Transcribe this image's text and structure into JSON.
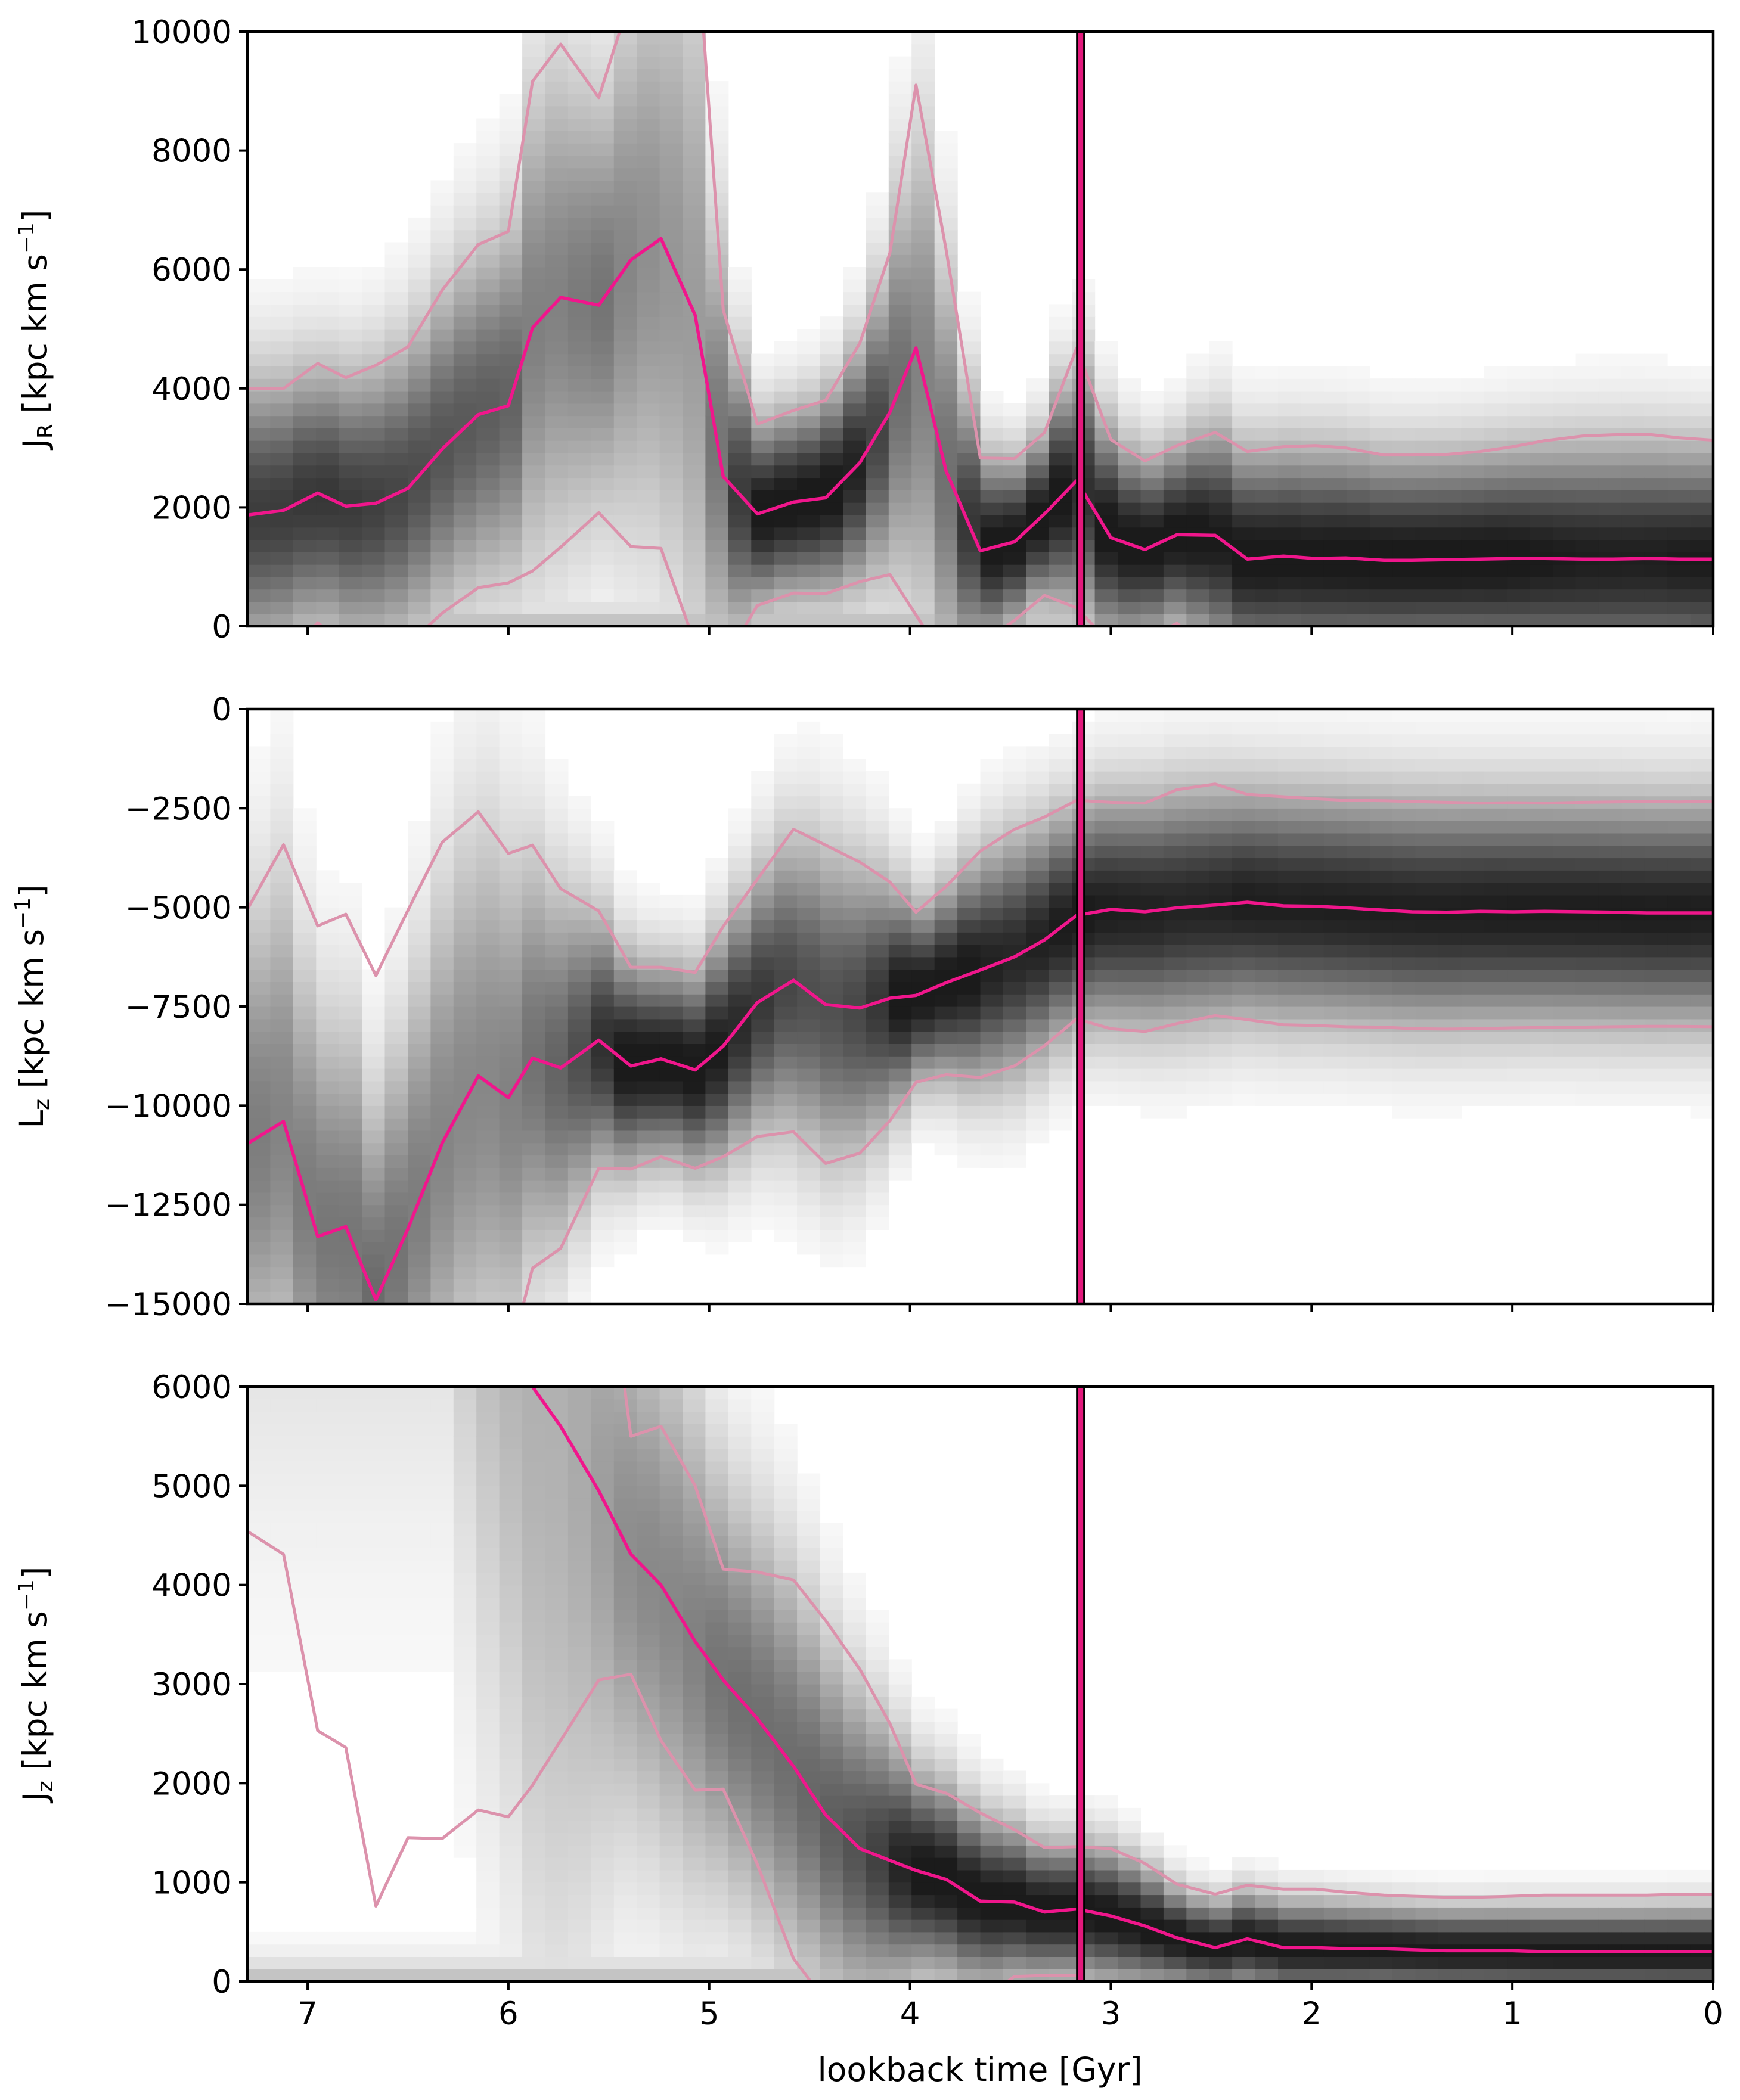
{
  "colors": {
    "median": "#f0168c",
    "percentile": "#dc92ac",
    "marker_fill": "#e3197c",
    "marker_edge": "#000000",
    "heat_dark": "#0b0b0b"
  },
  "chart_data": [
    {
      "type": "heatmap",
      "panel": "top",
      "ylabel_main": "J",
      "ylabel_sub": "R",
      "ylabel_rest": " [kpc km s",
      "ylabel_sup": "−1",
      "ylabel_end": "]",
      "xlim": [
        7.3,
        0
      ],
      "ylim": [
        0,
        10000
      ],
      "yticks": [
        0,
        2000,
        4000,
        6000,
        8000,
        10000
      ],
      "ytick_labels": [
        "0",
        "2000",
        "4000",
        "6000",
        "8000",
        "10000"
      ],
      "marker_x": 3.15,
      "x": [
        7.3,
        7.12,
        6.95,
        6.81,
        6.66,
        6.5,
        6.33,
        6.15,
        6.0,
        5.88,
        5.74,
        5.55,
        5.39,
        5.24,
        5.07,
        4.93,
        4.76,
        4.58,
        4.42,
        4.25,
        4.1,
        3.97,
        3.82,
        3.65,
        3.48,
        3.33,
        3.17,
        3.0,
        2.83,
        2.67,
        2.48,
        2.32,
        2.14,
        1.98,
        1.83,
        1.64,
        1.5,
        1.33,
        1.16,
        1.0,
        0.84,
        0.65,
        0.5,
        0.33,
        0.17,
        0.0
      ],
      "median": [
        1870,
        1950,
        2240,
        2020,
        2070,
        2320,
        2980,
        3560,
        3710,
        5020,
        5530,
        5400,
        6160,
        6520,
        5230,
        2520,
        1890,
        2090,
        2160,
        2750,
        3600,
        4680,
        2610,
        1270,
        1420,
        1890,
        2450,
        1490,
        1290,
        1540,
        1530,
        1130,
        1180,
        1140,
        1150,
        1110,
        1110,
        1120,
        1130,
        1140,
        1140,
        1130,
        1130,
        1140,
        1130,
        1130
      ],
      "p_high": [
        4000,
        4000,
        4420,
        4180,
        4390,
        4700,
        5650,
        6420,
        6640,
        9160,
        9790,
        8890,
        10600,
        12000,
        12000,
        5320,
        3400,
        3630,
        3800,
        4760,
        6280,
        9100,
        6330,
        2830,
        2820,
        3260,
        4680,
        3140,
        2780,
        3040,
        3260,
        2940,
        3020,
        3040,
        3000,
        2880,
        2880,
        2890,
        2940,
        3020,
        3120,
        3200,
        3220,
        3230,
        3170,
        3130
      ],
      "p_low": [
        -600,
        -550,
        60,
        -320,
        -300,
        -300,
        220,
        650,
        730,
        930,
        1330,
        1910,
        1340,
        1310,
        -300,
        -600,
        350,
        560,
        550,
        750,
        870,
        190,
        -600,
        -300,
        100,
        520,
        310,
        -300,
        -200,
        50,
        -500,
        -600,
        -600,
        -600,
        -600,
        -600,
        -600,
        -600,
        -600,
        -600,
        -600,
        -600,
        -600,
        -600,
        -600,
        -600
      ]
    },
    {
      "type": "heatmap",
      "panel": "middle",
      "ylabel_main": "L",
      "ylabel_sub": "z",
      "ylabel_rest": " [kpc km s",
      "ylabel_sup": "−1",
      "ylabel_end": "]",
      "xlim": [
        7.3,
        0
      ],
      "ylim": [
        -15000,
        0
      ],
      "yticks": [
        -15000,
        -12500,
        -10000,
        -7500,
        -5000,
        -2500,
        0
      ],
      "ytick_labels": [
        "−15000",
        "−12500",
        "−10000",
        "−7500",
        "−5000",
        "−2500",
        "0"
      ],
      "marker_x": 3.15,
      "x": [
        7.3,
        7.12,
        6.95,
        6.81,
        6.66,
        6.5,
        6.33,
        6.15,
        6.0,
        5.88,
        5.74,
        5.55,
        5.39,
        5.24,
        5.07,
        4.93,
        4.76,
        4.58,
        4.42,
        4.25,
        4.1,
        3.97,
        3.82,
        3.65,
        3.48,
        3.33,
        3.17,
        3.0,
        2.83,
        2.67,
        2.48,
        2.32,
        2.14,
        1.98,
        1.83,
        1.64,
        1.5,
        1.33,
        1.16,
        1.0,
        0.84,
        0.65,
        0.5,
        0.33,
        0.17,
        0.0
      ],
      "median": [
        -10960,
        -10400,
        -13300,
        -13050,
        -14900,
        -13100,
        -10950,
        -9250,
        -9800,
        -8800,
        -9050,
        -8350,
        -9000,
        -8820,
        -9100,
        -8500,
        -7400,
        -6840,
        -7450,
        -7540,
        -7290,
        -7220,
        -6900,
        -6580,
        -6250,
        -5820,
        -5200,
        -5050,
        -5110,
        -5010,
        -4940,
        -4870,
        -4960,
        -4970,
        -5010,
        -5070,
        -5110,
        -5120,
        -5100,
        -5110,
        -5100,
        -5110,
        -5120,
        -5140,
        -5140,
        -5140
      ],
      "p_high": [
        -5050,
        -3420,
        -5470,
        -5170,
        -6720,
        -5070,
        -3360,
        -2590,
        -3640,
        -3430,
        -4530,
        -5090,
        -6510,
        -6510,
        -6640,
        -5480,
        -4290,
        -3030,
        -3430,
        -3860,
        -4360,
        -5120,
        -4470,
        -3580,
        -3030,
        -2720,
        -2300,
        -2350,
        -2370,
        -2030,
        -1890,
        -2150,
        -2210,
        -2260,
        -2300,
        -2310,
        -2330,
        -2350,
        -2370,
        -2360,
        -2370,
        -2350,
        -2340,
        -2330,
        -2340,
        -2320
      ],
      "p_low": [
        -16500,
        -16500,
        -16500,
        -16500,
        -16500,
        -16500,
        -16500,
        -16500,
        -16500,
        -14100,
        -13600,
        -11580,
        -11600,
        -11290,
        -11580,
        -11290,
        -10780,
        -10660,
        -11460,
        -11200,
        -10380,
        -9410,
        -9220,
        -9290,
        -9000,
        -8490,
        -7810,
        -8060,
        -8130,
        -7930,
        -7730,
        -7830,
        -7960,
        -7980,
        -8010,
        -8020,
        -8060,
        -8070,
        -8060,
        -8040,
        -8030,
        -8020,
        -8010,
        -8000,
        -8000,
        -8010
      ]
    },
    {
      "type": "heatmap",
      "panel": "bottom",
      "ylabel_main": "J",
      "ylabel_sub": "z",
      "ylabel_rest": " [kpc km s",
      "ylabel_sup": "−1",
      "ylabel_end": "]",
      "xlim": [
        7.3,
        0
      ],
      "ylim": [
        0,
        6000
      ],
      "yticks": [
        0,
        1000,
        2000,
        3000,
        4000,
        5000,
        6000
      ],
      "ytick_labels": [
        "0",
        "1000",
        "2000",
        "3000",
        "4000",
        "5000",
        "6000"
      ],
      "xticks": [
        7,
        6,
        5,
        4,
        3,
        2,
        1,
        0
      ],
      "xtick_labels": [
        "7",
        "6",
        "5",
        "4",
        "3",
        "2",
        "1",
        "0"
      ],
      "xlabel": "lookback time [Gyr]",
      "marker_x": 3.15,
      "x": [
        7.3,
        7.12,
        6.95,
        6.81,
        6.66,
        6.5,
        6.33,
        6.15,
        6.0,
        5.88,
        5.74,
        5.55,
        5.39,
        5.24,
        5.07,
        4.93,
        4.76,
        4.58,
        4.42,
        4.25,
        4.1,
        3.97,
        3.82,
        3.65,
        3.48,
        3.33,
        3.17,
        3.0,
        2.83,
        2.67,
        2.48,
        2.32,
        2.14,
        1.98,
        1.83,
        1.64,
        1.5,
        1.33,
        1.16,
        1.0,
        0.84,
        0.65,
        0.5,
        0.33,
        0.17,
        0.0
      ],
      "median": [
        12000,
        12000,
        12000,
        12000,
        12000,
        12000,
        12000,
        9000,
        7500,
        6000,
        5600,
        4950,
        4310,
        4000,
        3430,
        3040,
        2650,
        2170,
        1680,
        1340,
        1220,
        1120,
        1030,
        810,
        800,
        700,
        730,
        660,
        560,
        440,
        340,
        430,
        340,
        340,
        330,
        330,
        320,
        310,
        310,
        310,
        300,
        300,
        300,
        300,
        300,
        300
      ],
      "p_high": [
        4540,
        4310,
        2530,
        2360,
        760,
        1450,
        1440,
        1730,
        1660,
        1980,
        2430,
        3040,
        3100,
        2430,
        1930,
        1940,
        1180,
        230,
        -200,
        -200,
        -200,
        -200,
        -200,
        -200,
        50,
        60,
        60,
        -200,
        -200,
        -200,
        -200,
        -200,
        -200,
        -200,
        -200,
        -200,
        -200,
        -200,
        -200,
        -200,
        -200,
        -200,
        -200,
        -200,
        -200,
        -200
      ],
      "p_upper": [
        12000,
        12000,
        12000,
        12000,
        12000,
        12000,
        12000,
        12000,
        12000,
        12000,
        12000,
        8000,
        5500,
        5600,
        5000,
        4160,
        4130,
        4050,
        3640,
        3150,
        2600,
        1990,
        1900,
        1700,
        1530,
        1350,
        1360,
        1340,
        1190,
        980,
        880,
        970,
        930,
        930,
        900,
        870,
        860,
        850,
        850,
        860,
        870,
        870,
        870,
        870,
        880,
        880
      ]
    }
  ]
}
